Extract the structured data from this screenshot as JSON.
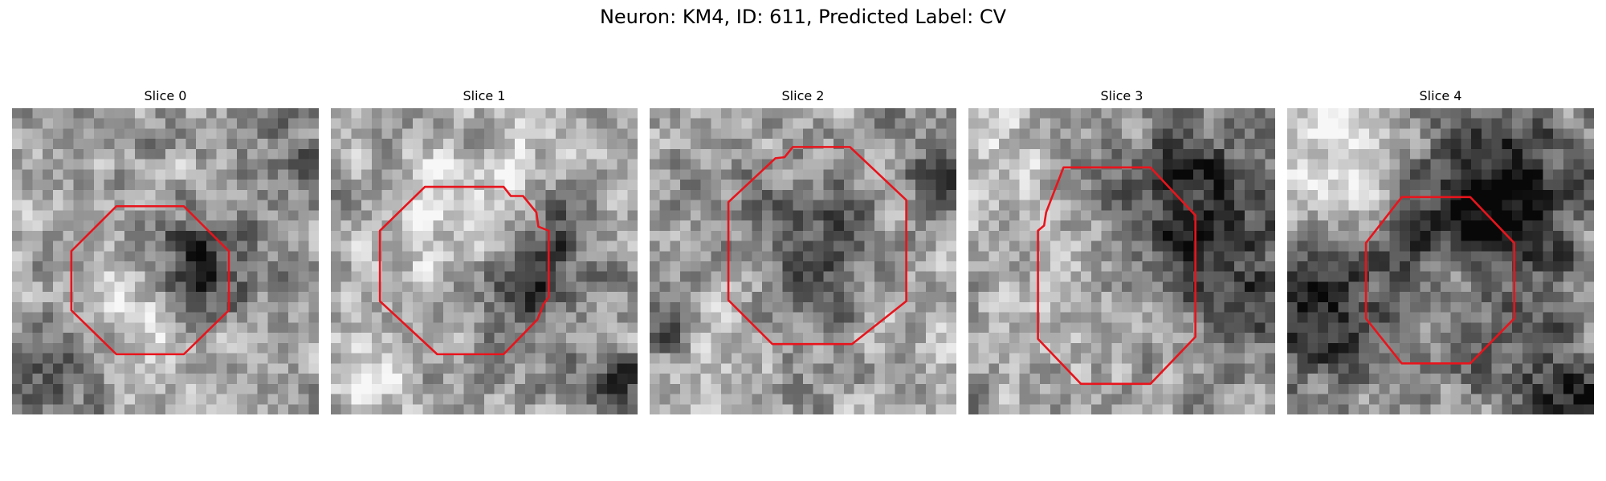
{
  "figure": {
    "title": "Neuron: KM4, ID: 611, Predicted Label: CV"
  },
  "contour_color": "#e8141c",
  "panels": [
    {
      "title": "Slice 0"
    },
    {
      "title": "Slice 1"
    },
    {
      "title": "Slice 2"
    },
    {
      "title": "Slice 3"
    },
    {
      "title": "Slice 4"
    }
  ]
}
